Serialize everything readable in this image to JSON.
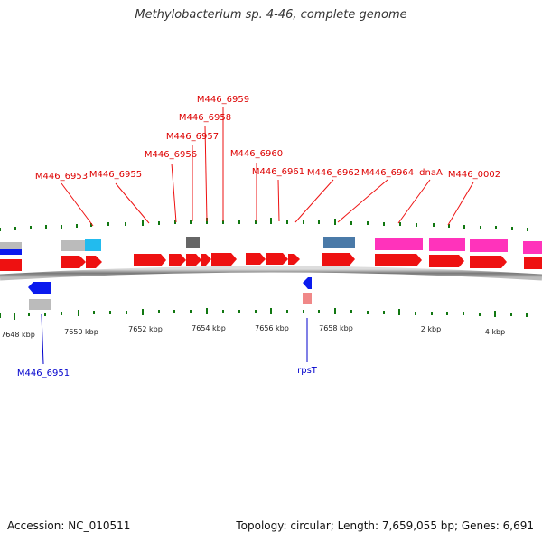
{
  "title": "Methylobacterium sp. 4-46, complete genome",
  "footer": {
    "accession": "Accession: NC_010511",
    "topology": "Topology: circular; Length: 7,659,055 bp; Genes: 6,691"
  },
  "colors": {
    "forward_gene": "#ee1111",
    "reverse_gene": "#0a1aee",
    "rna_gene": "#ff33bb",
    "steel_gene": "#4a7aa8",
    "gray_feature": "#bbbbbb",
    "dark_feature": "#666666",
    "cyan_feature": "#22bbee",
    "tick": "#117711",
    "label_forward": "#dd0000",
    "label_reverse": "#0000cc"
  },
  "scale_labels": [
    "7648 kbp",
    "7650 kbp",
    "7652 kbp",
    "7654 kbp",
    "7656 kbp",
    "7658 kbp",
    "2 kbp",
    "4 kbp"
  ],
  "top_labels": [
    "M446_6953",
    "M446_6955",
    "M446_6956",
    "M446_6957",
    "M446_6958",
    "M446_6959",
    "M446_6960",
    "M446_6961",
    "M446_6962",
    "M446_6964",
    "dnaA",
    "M446_0002"
  ],
  "bottom_labels": [
    "M446_6951",
    "rpsT"
  ]
}
